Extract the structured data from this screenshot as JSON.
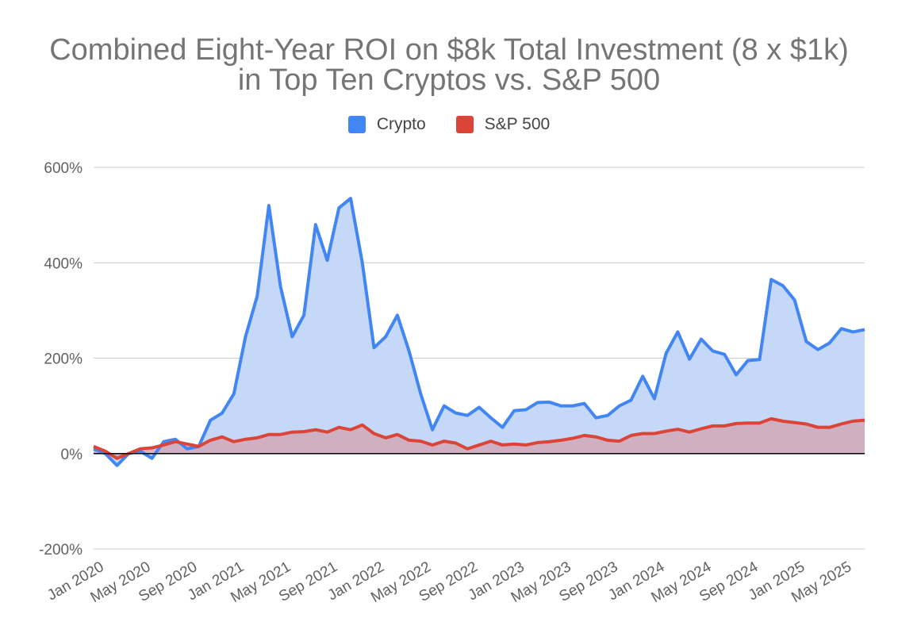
{
  "chart_data": {
    "type": "area",
    "title": "Combined Eight-Year ROI on $8k Total Investment (8 x $1k)",
    "subtitle": "in Top Ten Cryptos vs. S&P 500",
    "legend_position": "top",
    "grid": true,
    "ylim": [
      -200,
      600
    ],
    "y_ticks": [
      -200,
      0,
      200,
      400,
      600
    ],
    "y_tick_labels": [
      "-200%",
      "0%",
      "200%",
      "400%",
      "600%"
    ],
    "x_tick_labels": [
      "Jan 2020",
      "May 2020",
      "Sep 2020",
      "Jan 2021",
      "May 2021",
      "Sep 2021",
      "Jan 2022",
      "May 2022",
      "Sep 2022",
      "Jan 2023",
      "May 2023",
      "Sep 2023",
      "Jan 2024",
      "May 2024",
      "Sep 2024",
      "Jan 2025",
      "May 2025"
    ],
    "x": [
      "Jan 2020",
      "Feb 2020",
      "Mar 2020",
      "Apr 2020",
      "May 2020",
      "Jun 2020",
      "Jul 2020",
      "Aug 2020",
      "Sep 2020",
      "Oct 2020",
      "Nov 2020",
      "Dec 2020",
      "Jan 2021",
      "Feb 2021",
      "Mar 2021",
      "Apr 2021",
      "May 2021",
      "Jun 2021",
      "Jul 2021",
      "Aug 2021",
      "Sep 2021",
      "Oct 2021",
      "Nov 2021",
      "Dec 2021",
      "Jan 2022",
      "Feb 2022",
      "Mar 2022",
      "Apr 2022",
      "May 2022",
      "Jun 2022",
      "Jul 2022",
      "Aug 2022",
      "Sep 2022",
      "Oct 2022",
      "Nov 2022",
      "Dec 2022",
      "Jan 2023",
      "Feb 2023",
      "Mar 2023",
      "Apr 2023",
      "May 2023",
      "Jun 2023",
      "Jul 2023",
      "Aug 2023",
      "Sep 2023",
      "Oct 2023",
      "Nov 2023",
      "Dec 2023",
      "Jan 2024",
      "Feb 2024",
      "Mar 2024",
      "Apr 2024",
      "May 2024",
      "Jun 2024",
      "Jul 2024",
      "Aug 2024",
      "Sep 2024",
      "Oct 2024",
      "Nov 2024",
      "Dec 2024",
      "Jan 2025",
      "Feb 2025",
      "Mar 2025",
      "Apr 2025",
      "May 2025",
      "Jun 2025",
      "Jul 2025"
    ],
    "series": [
      {
        "name": "Crypto",
        "color": "#4285f4",
        "fill": "#c5d8f7",
        "values": [
          10,
          0,
          -25,
          0,
          5,
          -10,
          25,
          30,
          10,
          15,
          70,
          85,
          125,
          245,
          330,
          520,
          350,
          245,
          290,
          480,
          405,
          515,
          535,
          400,
          222,
          245,
          290,
          215,
          125,
          50,
          100,
          85,
          80,
          97,
          75,
          55,
          90,
          92,
          107,
          108,
          100,
          100,
          105,
          75,
          80,
          100,
          112,
          162,
          115,
          210,
          255,
          198,
          240,
          215,
          208,
          165,
          195,
          197,
          365,
          352,
          322,
          235,
          218,
          232,
          262,
          255,
          260
        ]
      },
      {
        "name": "S&P 500",
        "color": "#db4437",
        "fill": "#d0a9b9",
        "values": [
          15,
          5,
          -10,
          0,
          10,
          12,
          18,
          25,
          20,
          15,
          28,
          35,
          25,
          30,
          33,
          40,
          40,
          45,
          46,
          50,
          45,
          55,
          50,
          60,
          42,
          33,
          40,
          28,
          26,
          18,
          26,
          22,
          10,
          18,
          26,
          18,
          20,
          18,
          23,
          25,
          28,
          32,
          38,
          35,
          28,
          26,
          38,
          42,
          42,
          47,
          51,
          45,
          52,
          58,
          58,
          63,
          64,
          64,
          73,
          68,
          65,
          62,
          55,
          55,
          62,
          68,
          70
        ]
      }
    ]
  }
}
